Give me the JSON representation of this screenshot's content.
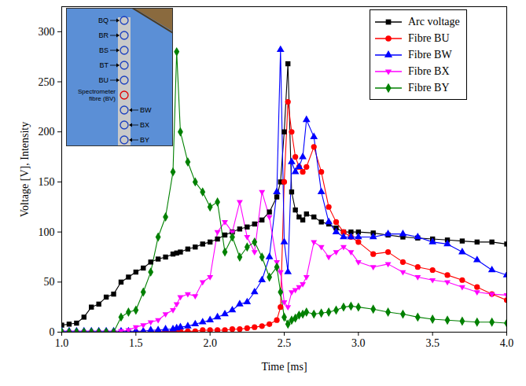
{
  "chart_data": {
    "type": "line",
    "x_label": "Time [ms]",
    "y_label": "Voltage [V], Intensity",
    "xlim": [
      1.0,
      4.0
    ],
    "xticks": [
      {
        "value": 1,
        "label": "1.0"
      },
      {
        "value": 1.5,
        "label": "1.5"
      },
      {
        "value": 2,
        "label": "2.0"
      },
      {
        "value": 2.5,
        "label": "2.5"
      },
      {
        "value": 3,
        "label": "3.0"
      },
      {
        "value": 3.5,
        "label": "3.5"
      },
      {
        "value": 4,
        "label": "4.0"
      }
    ],
    "ylim": [
      0,
      325
    ],
    "yticks": [
      0,
      50,
      100,
      150,
      200,
      250,
      300
    ],
    "grid": false,
    "legend": "top-right",
    "annotations": [
      "BQ",
      "BR",
      "BS",
      "BT",
      "BU",
      "Spectrometer fibre (BV)",
      "BW",
      "BX",
      "BY"
    ],
    "x": [
      1.0,
      1.05,
      1.1,
      1.15,
      1.2,
      1.25,
      1.3,
      1.35,
      1.4,
      1.45,
      1.5,
      1.55,
      1.6,
      1.65,
      1.7,
      1.75,
      1.775,
      1.8,
      1.85,
      1.9,
      1.95,
      2.0,
      2.05,
      2.1,
      2.15,
      2.2,
      2.25,
      2.3,
      2.35,
      2.4,
      2.45,
      2.475,
      2.5,
      2.525,
      2.55,
      2.575,
      2.6,
      2.625,
      2.65,
      2.7,
      2.75,
      2.8,
      2.85,
      2.9,
      2.95,
      3.0,
      3.1,
      3.2,
      3.3,
      3.4,
      3.5,
      3.6,
      3.7,
      3.8,
      3.9,
      4.0
    ],
    "series": [
      {
        "name": "Arc voltage",
        "color": "#000000",
        "marker": "square",
        "values": [
          7,
          8,
          9,
          15,
          25,
          28,
          35,
          38,
          50,
          55,
          60,
          64,
          70,
          73,
          75,
          78,
          79,
          80,
          83,
          85,
          88,
          90,
          93,
          97,
          100,
          103,
          105,
          108,
          112,
          120,
          135,
          150,
          200,
          268,
          140,
          122,
          115,
          112,
          118,
          115,
          110,
          108,
          104,
          100,
          100,
          100,
          99,
          97,
          95,
          94,
          93,
          92,
          91,
          90,
          90,
          88
        ]
      },
      {
        "name": "Fibre BU",
        "color": "#ff0000",
        "marker": "circle",
        "values": [
          0,
          0,
          0,
          0,
          0,
          0,
          0,
          0,
          0,
          0,
          0,
          0,
          0,
          1,
          1,
          1,
          1,
          1,
          1,
          1,
          2,
          2,
          2,
          2,
          3,
          3,
          4,
          5,
          6,
          8,
          12,
          25,
          150,
          230,
          200,
          175,
          165,
          160,
          165,
          185,
          160,
          125,
          110,
          100,
          95,
          90,
          78,
          80,
          70,
          65,
          62,
          57,
          52,
          45,
          38,
          32
        ]
      },
      {
        "name": "Fibre BW",
        "color": "#0000ff",
        "marker": "triangle",
        "values": [
          1,
          1,
          1,
          1,
          1,
          1,
          1,
          1,
          1,
          1,
          1,
          1,
          2,
          2,
          3,
          3,
          4,
          5,
          6,
          8,
          10,
          12,
          15,
          18,
          22,
          28,
          30,
          40,
          52,
          75,
          140,
          282,
          90,
          60,
          170,
          160,
          165,
          175,
          212,
          195,
          140,
          110,
          100,
          95,
          95,
          95,
          95,
          98,
          98,
          95,
          90,
          88,
          80,
          72,
          62,
          57
        ]
      },
      {
        "name": "Fibre BX",
        "color": "#ff00ff",
        "marker": "triangle-down",
        "values": [
          0,
          0,
          0,
          0,
          0,
          0,
          0,
          0,
          1,
          2,
          5,
          7,
          10,
          12,
          18,
          22,
          28,
          35,
          38,
          36,
          50,
          55,
          100,
          110,
          100,
          130,
          95,
          80,
          140,
          115,
          70,
          60,
          30,
          25,
          40,
          42,
          45,
          48,
          55,
          90,
          85,
          75,
          80,
          85,
          80,
          70,
          65,
          68,
          60,
          55,
          52,
          50,
          45,
          40,
          38,
          37
        ]
      },
      {
        "name": "Fibre BY",
        "color": "#008000",
        "marker": "diamond",
        "values": [
          0,
          0,
          0,
          0,
          0,
          0,
          0,
          0,
          15,
          20,
          22,
          40,
          60,
          95,
          115,
          160,
          280,
          200,
          170,
          150,
          140,
          125,
          130,
          80,
          95,
          75,
          85,
          90,
          75,
          55,
          65,
          40,
          15,
          8,
          12,
          14,
          17,
          18,
          20,
          18,
          19,
          20,
          22,
          25,
          26,
          25,
          23,
          20,
          18,
          15,
          13,
          12,
          11,
          10,
          10,
          9
        ]
      }
    ]
  }
}
